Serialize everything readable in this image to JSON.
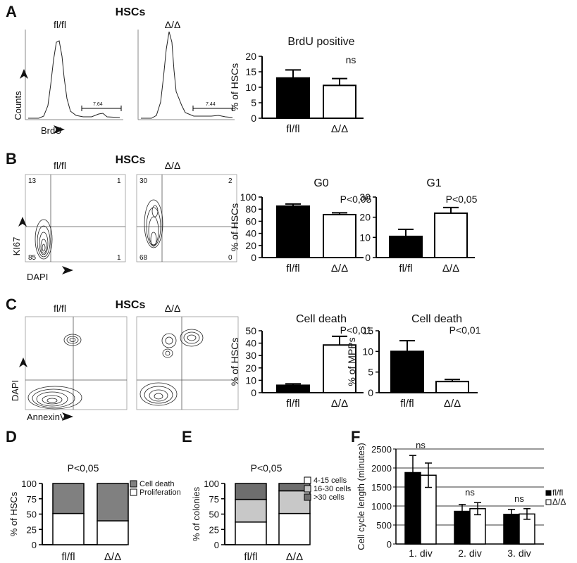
{
  "panels": {
    "A": {
      "letter": "A",
      "title": "HSCs",
      "label_ff": "fl/fl",
      "label_dd": "Δ/Δ",
      "ylabel": "Counts",
      "xlabel": "BrdU",
      "gate_ff": "7.64",
      "gate_dd": "7.44"
    },
    "B": {
      "letter": "B",
      "title": "HSCs",
      "label_ff": "fl/fl",
      "label_dd": "Δ/Δ",
      "ylabel": "KI67",
      "xlabel": "DAPI",
      "quad_ff": [
        "13",
        "1",
        "85",
        "1"
      ],
      "quad_dd": [
        "30",
        "2",
        "68",
        "0"
      ]
    },
    "C": {
      "letter": "C",
      "title": "HSCs",
      "label_ff": "fl/fl",
      "label_dd": "Δ/Δ",
      "ylabel": "DAPI",
      "xlabel": "AnnexinV"
    },
    "D": {
      "letter": "D"
    },
    "E": {
      "letter": "E"
    },
    "F": {
      "letter": "F"
    }
  },
  "chart_data": [
    {
      "id": "A-brdu",
      "type": "bar",
      "title": "BrdU positive",
      "ylabel": "% of HSCs",
      "categories": [
        "fl/fl",
        "Δ/Δ"
      ],
      "values": [
        13,
        10.6
      ],
      "errors": [
        2.6,
        2.2
      ],
      "ylim": [
        0,
        20
      ],
      "yticks": [
        0,
        5,
        10,
        15,
        20
      ],
      "annotation": "ns",
      "colors": [
        "#000000",
        "#ffffff"
      ]
    },
    {
      "id": "B-g0",
      "type": "bar",
      "title": "G0",
      "ylabel": "% of HSCs",
      "categories": [
        "fl/fl",
        "Δ/Δ"
      ],
      "values": [
        85,
        71
      ],
      "errors": [
        3.5,
        3
      ],
      "ylim": [
        0,
        100
      ],
      "yticks": [
        0,
        20,
        40,
        60,
        80,
        100
      ],
      "annotation": "P<0,05",
      "colors": [
        "#000000",
        "#ffffff"
      ]
    },
    {
      "id": "B-g1",
      "type": "bar",
      "title": "G1",
      "ylabel": "",
      "categories": [
        "fl/fl",
        "Δ/Δ"
      ],
      "values": [
        10.5,
        22
      ],
      "errors": [
        3.5,
        2.8
      ],
      "ylim": [
        0,
        30
      ],
      "yticks": [
        0,
        10,
        20,
        30
      ],
      "annotation": "P<0,05",
      "colors": [
        "#000000",
        "#ffffff"
      ]
    },
    {
      "id": "C-hsc",
      "type": "bar",
      "title": "Cell death",
      "ylabel": "% of HSCs",
      "categories": [
        "fl/fl",
        "Δ/Δ"
      ],
      "values": [
        6,
        38.5
      ],
      "errors": [
        1.2,
        7
      ],
      "ylim": [
        0,
        50
      ],
      "yticks": [
        0,
        10,
        20,
        30,
        40,
        50
      ],
      "annotation": "P<0,01",
      "colors": [
        "#000000",
        "#ffffff"
      ]
    },
    {
      "id": "C-mpp",
      "type": "bar",
      "title": "Cell death",
      "ylabel": "% of MPPs",
      "categories": [
        "fl/fl",
        "Δ/Δ"
      ],
      "values": [
        10,
        2.7
      ],
      "errors": [
        2.6,
        0.5
      ],
      "ylim": [
        0,
        15
      ],
      "yticks": [
        0,
        5,
        10,
        15
      ],
      "annotation": "P<0,01",
      "colors": [
        "#000000",
        "#ffffff"
      ]
    },
    {
      "id": "D",
      "type": "bar",
      "stacked": true,
      "ylabel": "% of HSCs",
      "categories": [
        "fl/fl",
        "Δ/Δ"
      ],
      "annotation": "P<0,05",
      "ylim": [
        0,
        100
      ],
      "yticks": [
        0,
        25,
        50,
        75,
        100
      ],
      "series": [
        {
          "name": "Proliferation",
          "values": [
            51,
            39
          ],
          "color": "#ffffff"
        },
        {
          "name": "Cell death",
          "values": [
            49,
            61
          ],
          "color": "#808080"
        }
      ],
      "legend_order": [
        "Cell death",
        "Proliferation"
      ]
    },
    {
      "id": "E",
      "type": "bar",
      "stacked": true,
      "ylabel": "% of colonies",
      "categories": [
        "fl/fl",
        "Δ/Δ"
      ],
      "annotation": "P<0,05",
      "ylim": [
        0,
        100
      ],
      "yticks": [
        0,
        25,
        50,
        75,
        100
      ],
      "series": [
        {
          "name": "4-15 cells",
          "values": [
            37,
            51
          ],
          "color": "#ffffff"
        },
        {
          "name": "16-30 cells",
          "values": [
            37,
            37
          ],
          "color": "#c8c8c8"
        },
        {
          "name": ">30 cells",
          "values": [
            26,
            12
          ],
          "color": "#6e6e6e"
        }
      ],
      "legend_order": [
        "4-15 cells",
        "16-30 cells",
        ">30 cells"
      ]
    },
    {
      "id": "F",
      "type": "bar",
      "ylabel": "Cell cycle length (minutes)",
      "categories": [
        "1. div",
        "2. div",
        "3. div"
      ],
      "ylim": [
        0,
        2500
      ],
      "yticks": [
        0,
        500,
        1000,
        1500,
        2000,
        2500
      ],
      "grid": true,
      "legend_placement": "right",
      "series": [
        {
          "name": "fl/fl",
          "values": [
            1880,
            860,
            780
          ],
          "errors": [
            450,
            180,
            130
          ],
          "color": "#000000"
        },
        {
          "name": "Δ/Δ",
          "values": [
            1810,
            930,
            790
          ],
          "errors": [
            320,
            160,
            140
          ],
          "color": "#ffffff"
        }
      ],
      "annotations": [
        "ns",
        "ns",
        "ns"
      ]
    }
  ]
}
